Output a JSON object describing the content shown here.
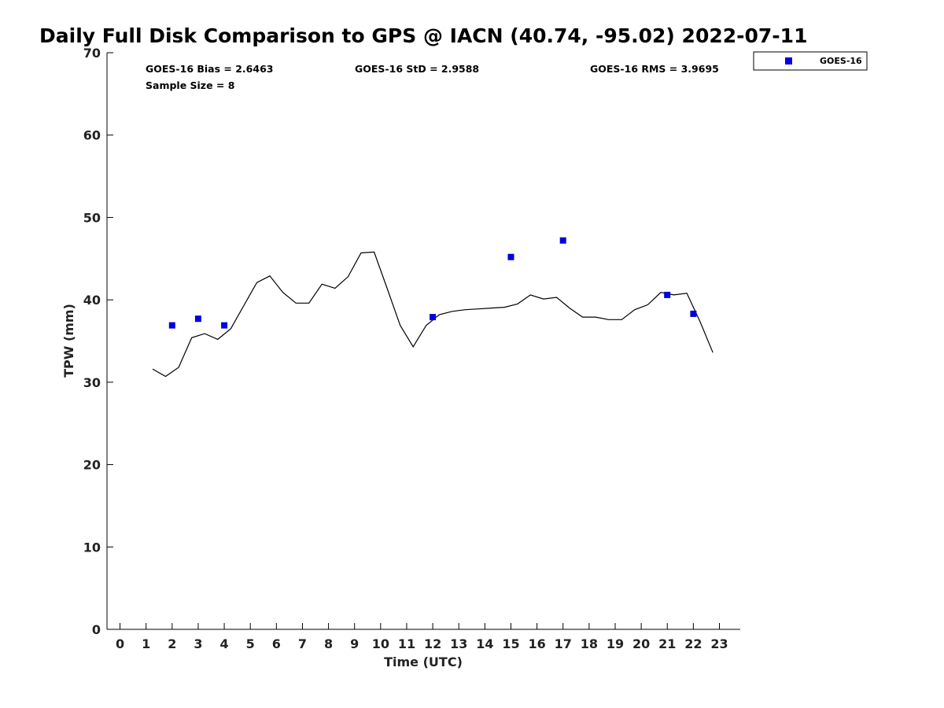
{
  "chart_data": {
    "type": "scatter",
    "title": "Daily Full Disk Comparison to GPS @ IACN (40.74, -95.02) 2022-07-11",
    "xlabel": "Time (UTC)",
    "ylabel": "TPW (mm)",
    "xlim": [
      -0.5,
      23.8
    ],
    "ylim": [
      0,
      70
    ],
    "x_ticks": [
      "0",
      "1",
      "2",
      "3",
      "4",
      "5",
      "6",
      "7",
      "8",
      "9",
      "10",
      "11",
      "12",
      "13",
      "14",
      "15",
      "16",
      "17",
      "18",
      "19",
      "20",
      "21",
      "22",
      "23"
    ],
    "y_ticks": [
      "0",
      "10",
      "20",
      "30",
      "40",
      "50",
      "60",
      "70"
    ],
    "grid": false,
    "legend_position": "top-right-outside",
    "stats": {
      "bias": "GOES-16 Bias = 2.6463",
      "std": "GOES-16 StD = 2.9588",
      "rms": "GOES-16 RMS = 3.9695",
      "sample": "Sample Size = 8"
    },
    "series": [
      {
        "name": "GOES-16",
        "kind": "scatter",
        "color": "#0000dd",
        "x": [
          2,
          3,
          4,
          12,
          15,
          17,
          21,
          22
        ],
        "y": [
          36.9,
          37.7,
          36.9,
          37.9,
          45.2,
          47.2,
          40.6,
          38.3
        ]
      },
      {
        "kind": "line",
        "color": "#000000",
        "x": [
          1.25,
          1.75,
          2.25,
          2.75,
          3.25,
          3.75,
          4.25,
          4.75,
          5.25,
          5.75,
          6.25,
          6.75,
          7.25,
          7.75,
          8.25,
          8.75,
          9.25,
          9.75,
          10.25,
          10.75,
          11.25,
          11.75,
          12.25,
          12.75,
          13.25,
          13.75,
          14.25,
          14.75,
          15.25,
          15.75,
          16.25,
          16.75,
          17.25,
          17.75,
          18.25,
          18.75,
          19.25,
          19.75,
          20.25,
          20.75,
          21.25,
          21.75,
          22.25,
          22.75
        ],
        "y": [
          31.6,
          30.7,
          31.8,
          35.4,
          35.9,
          35.2,
          36.5,
          39.3,
          42.1,
          42.9,
          40.9,
          39.6,
          39.6,
          41.9,
          41.4,
          42.8,
          45.7,
          45.8,
          41.4,
          36.9,
          34.3,
          36.9,
          38.2,
          38.6,
          38.8,
          38.9,
          39.0,
          39.1,
          39.5,
          40.6,
          40.1,
          40.3,
          39.0,
          37.9,
          37.9,
          37.6,
          37.6,
          38.8,
          39.4,
          40.9,
          40.6,
          40.8,
          37.4,
          33.6
        ]
      }
    ]
  }
}
